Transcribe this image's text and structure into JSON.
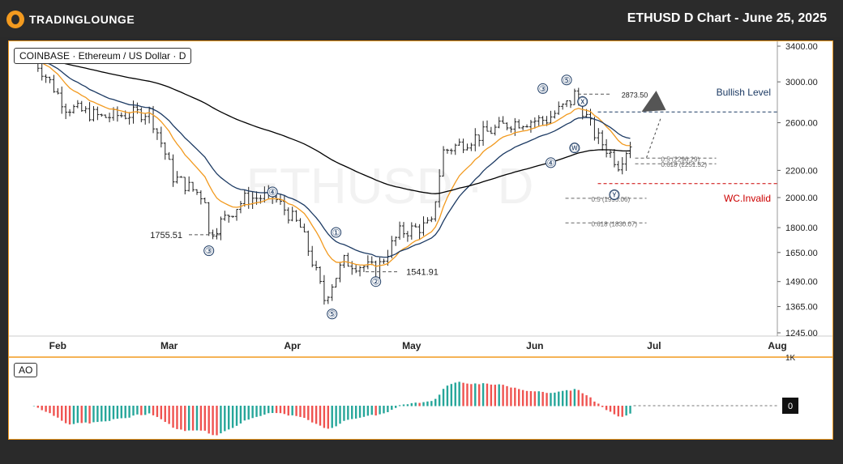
{
  "brand": {
    "name": "TRADINGLOUNGE",
    "accent": "#f29a1f"
  },
  "header": {
    "title": "ETHUSD D Chart - June 25, 2025"
  },
  "legend": {
    "symbol": "COINBASE · Ethereum / US Dollar · D"
  },
  "watermark": "ETHUSD · D",
  "indicator": {
    "name": "AO",
    "zero_label": "0",
    "top_label": "1K"
  },
  "chart_data": {
    "type": "candlestick",
    "title": "ETHUSD D Chart - June 25, 2025",
    "x_ticks": [
      "Feb",
      "Mar",
      "Apr",
      "May",
      "Jun",
      "Jul",
      "Aug"
    ],
    "y_ticks": [
      "3400.00",
      "3000.00",
      "2600.00",
      "2200.00",
      "2000.00",
      "1800.00",
      "1650.00",
      "1490.00",
      "1365.00",
      "1245.00"
    ],
    "ylim": [
      1245,
      3400
    ],
    "y_scale": "log",
    "price_path": [
      [
        "2025-01-26",
        3250
      ],
      [
        "2025-02-03",
        2750
      ],
      [
        "2025-02-12",
        2650
      ],
      [
        "2025-02-24",
        2700
      ],
      [
        "2025-03-02",
        2150
      ],
      [
        "2025-03-10",
        2000
      ],
      [
        "2025-03-11",
        1755.51
      ],
      [
        "2025-03-20",
        1990
      ],
      [
        "2025-03-27",
        2010
      ],
      [
        "2025-04-03",
        1800
      ],
      [
        "2025-04-09",
        1400
      ],
      [
        "2025-04-14",
        1600
      ],
      [
        "2025-04-21",
        1560
      ],
      [
        "2025-04-22",
        1541.91
      ],
      [
        "2025-04-28",
        1770
      ],
      [
        "2025-05-06",
        1820
      ],
      [
        "2025-05-09",
        2350
      ],
      [
        "2025-05-19",
        2500
      ],
      [
        "2025-05-26",
        2600
      ],
      [
        "2025-06-04",
        2630
      ],
      [
        "2025-06-10",
        2800
      ],
      [
        "2025-06-11",
        2873.5
      ],
      [
        "2025-06-16",
        2500
      ],
      [
        "2025-06-22",
        2250
      ],
      [
        "2025-06-25",
        2420
      ]
    ],
    "moving_averages": [
      {
        "name": "",
        "color": "#f29a1f"
      },
      {
        "name": "",
        "color": "#1c3a63"
      },
      {
        "name": "",
        "color": "#000000"
      }
    ],
    "levels": [
      {
        "label": "Bullish Level",
        "value": 2700,
        "color": "#1c3a63",
        "style": "dashed"
      },
      {
        "label": "WC.Invalid",
        "value": 2100,
        "color": "#cc0000",
        "style": "dashed"
      },
      {
        "label": "0.5 (2296.29)",
        "value": 2296.29,
        "color": "#666666",
        "style": "dashed"
      },
      {
        "label": "0.618 (2251.52)",
        "value": 2251.52,
        "color": "#666666",
        "style": "dashed"
      },
      {
        "label": "0.5 (1995.06)",
        "value": 1995.06,
        "color": "#666666",
        "style": "dashed"
      },
      {
        "label": "0.618 (1830.07)",
        "value": 1830.07,
        "color": "#666666",
        "style": "dashed"
      }
    ],
    "price_labels": [
      {
        "label": "1755.51",
        "value": 1755.51
      },
      {
        "label": "1541.91",
        "value": 1541.91
      },
      {
        "label": "2873.50",
        "value": 2873.5
      }
    ],
    "wave_labels": [
      {
        "label": "③",
        "date": "2025-03-11",
        "value": 1660
      },
      {
        "label": "④",
        "date": "2025-03-27",
        "value": 2040
      },
      {
        "label": "①",
        "date": "2025-04-12",
        "value": 1770
      },
      {
        "label": "⑤",
        "date": "2025-04-11",
        "value": 1330
      },
      {
        "label": "②",
        "date": "2025-04-22",
        "value": 1490
      },
      {
        "label": "③",
        "date": "2025-06-03",
        "value": 2930
      },
      {
        "label": "④",
        "date": "2025-06-05",
        "value": 2260
      },
      {
        "label": "⑤",
        "date": "2025-06-09",
        "value": 3020
      },
      {
        "label": "Ⓧ",
        "date": "2025-06-13",
        "value": 2800
      },
      {
        "label": "Ⓦ",
        "date": "2025-06-11",
        "value": 2380
      },
      {
        "label": "Ⓨ",
        "date": "2025-06-21",
        "value": 2020
      }
    ],
    "ao_color_up": "#26a69a",
    "ao_color_down": "#ef5350"
  }
}
